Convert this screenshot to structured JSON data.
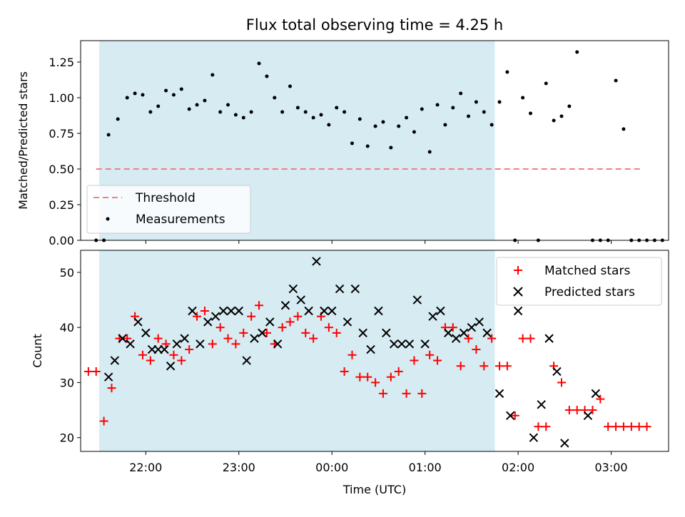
{
  "chart_data": [
    {
      "type": "scatter",
      "title": "Flux total observing time = 4.25 h",
      "xlabel": "",
      "ylabel": "Matched/Predicted stars",
      "ylim": [
        0,
        1.4
      ],
      "yticks": [
        0.0,
        0.25,
        0.5,
        0.75,
        1.0,
        1.25
      ],
      "ytick_labels": [
        "0.00",
        "0.25",
        "0.50",
        "0.75",
        "1.00",
        "1.25"
      ],
      "xlim": [
        "21:18",
        "03:37"
      ],
      "xticks": [
        "22:00",
        "23:00",
        "00:00",
        "01:00",
        "02:00",
        "03:00"
      ],
      "highlight_span": [
        "21:30",
        "01:45"
      ],
      "threshold": {
        "name": "Threshold",
        "value": 0.5,
        "x_range": [
          "21:28",
          "03:20"
        ],
        "color": "#f08080"
      },
      "legend_placement": "lower-left",
      "series": [
        {
          "name": "Measurements",
          "color": "#000000",
          "points": [
            [
              "21:28",
              0.0
            ],
            [
              "21:33",
              0.0
            ],
            [
              "21:36",
              0.74
            ],
            [
              "21:42",
              0.85
            ],
            [
              "21:48",
              1.0
            ],
            [
              "21:53",
              1.03
            ],
            [
              "21:58",
              1.02
            ],
            [
              "22:03",
              0.9
            ],
            [
              "22:08",
              0.94
            ],
            [
              "22:13",
              1.05
            ],
            [
              "22:18",
              1.02
            ],
            [
              "22:23",
              1.06
            ],
            [
              "22:28",
              0.92
            ],
            [
              "22:33",
              0.95
            ],
            [
              "22:38",
              0.98
            ],
            [
              "22:43",
              1.16
            ],
            [
              "22:48",
              0.9
            ],
            [
              "22:53",
              0.95
            ],
            [
              "22:58",
              0.88
            ],
            [
              "23:03",
              0.86
            ],
            [
              "23:08",
              0.9
            ],
            [
              "23:13",
              1.24
            ],
            [
              "23:18",
              1.15
            ],
            [
              "23:23",
              1.0
            ],
            [
              "23:28",
              0.9
            ],
            [
              "23:33",
              1.08
            ],
            [
              "23:38",
              0.93
            ],
            [
              "23:43",
              0.9
            ],
            [
              "23:48",
              0.86
            ],
            [
              "23:53",
              0.88
            ],
            [
              "23:58",
              0.81
            ],
            [
              "00:03",
              0.93
            ],
            [
              "00:08",
              0.9
            ],
            [
              "00:13",
              0.68
            ],
            [
              "00:18",
              0.85
            ],
            [
              "00:23",
              0.66
            ],
            [
              "00:28",
              0.8
            ],
            [
              "00:33",
              0.83
            ],
            [
              "00:38",
              0.65
            ],
            [
              "00:43",
              0.8
            ],
            [
              "00:48",
              0.86
            ],
            [
              "00:53",
              0.76
            ],
            [
              "00:58",
              0.92
            ],
            [
              "01:03",
              0.62
            ],
            [
              "01:08",
              0.95
            ],
            [
              "01:13",
              0.81
            ],
            [
              "01:18",
              0.93
            ],
            [
              "01:23",
              1.03
            ],
            [
              "01:28",
              0.87
            ],
            [
              "01:33",
              0.97
            ],
            [
              "01:38",
              0.9
            ],
            [
              "01:43",
              0.81
            ],
            [
              "01:48",
              0.97
            ],
            [
              "01:53",
              1.18
            ],
            [
              "01:58",
              0.0
            ],
            [
              "02:03",
              1.0
            ],
            [
              "02:08",
              0.89
            ],
            [
              "02:13",
              0.0
            ],
            [
              "02:18",
              1.1
            ],
            [
              "02:23",
              0.84
            ],
            [
              "02:28",
              0.87
            ],
            [
              "02:33",
              0.94
            ],
            [
              "02:38",
              1.32
            ],
            [
              "02:48",
              0.0
            ],
            [
              "02:53",
              0.0
            ],
            [
              "02:58",
              0.0
            ],
            [
              "03:03",
              1.12
            ],
            [
              "03:08",
              0.78
            ],
            [
              "03:13",
              0.0
            ],
            [
              "03:18",
              0.0
            ],
            [
              "03:23",
              0.0
            ],
            [
              "03:28",
              0.0
            ],
            [
              "03:33",
              0.0
            ]
          ]
        }
      ]
    },
    {
      "type": "scatter",
      "title": "",
      "xlabel": "Time (UTC)",
      "ylabel": "Count",
      "ylim": [
        17.5,
        54
      ],
      "yticks": [
        20,
        30,
        40,
        50
      ],
      "ytick_labels": [
        "20",
        "30",
        "40",
        "50"
      ],
      "xlim": [
        "21:18",
        "03:37"
      ],
      "xticks": [
        "22:00",
        "23:00",
        "00:00",
        "01:00",
        "02:00",
        "03:00"
      ],
      "xtick_labels": [
        "22:00",
        "23:00",
        "00:00",
        "01:00",
        "02:00",
        "03:00"
      ],
      "highlight_span": [
        "21:30",
        "01:45"
      ],
      "legend_placement": "upper-right",
      "series": [
        {
          "name": "Matched stars",
          "marker": "plus",
          "color": "#ff0000",
          "points": [
            [
              "21:23",
              32
            ],
            [
              "21:28",
              32
            ],
            [
              "21:33",
              23
            ],
            [
              "21:38",
              29
            ],
            [
              "21:43",
              38
            ],
            [
              "21:48",
              38
            ],
            [
              "21:53",
              42
            ],
            [
              "21:58",
              35
            ],
            [
              "22:03",
              34
            ],
            [
              "22:08",
              38
            ],
            [
              "22:13",
              37
            ],
            [
              "22:18",
              35
            ],
            [
              "22:23",
              34
            ],
            [
              "22:28",
              36
            ],
            [
              "22:33",
              42
            ],
            [
              "22:38",
              43
            ],
            [
              "22:43",
              37
            ],
            [
              "22:48",
              40
            ],
            [
              "22:53",
              38
            ],
            [
              "22:58",
              37
            ],
            [
              "23:03",
              39
            ],
            [
              "23:08",
              42
            ],
            [
              "23:13",
              44
            ],
            [
              "23:18",
              39
            ],
            [
              "23:23",
              37
            ],
            [
              "23:28",
              40
            ],
            [
              "23:33",
              41
            ],
            [
              "23:38",
              42
            ],
            [
              "23:43",
              39
            ],
            [
              "23:48",
              38
            ],
            [
              "23:53",
              42
            ],
            [
              "23:58",
              40
            ],
            [
              "00:03",
              39
            ],
            [
              "00:08",
              32
            ],
            [
              "00:13",
              35
            ],
            [
              "00:18",
              31
            ],
            [
              "00:23",
              31
            ],
            [
              "00:28",
              30
            ],
            [
              "00:33",
              28
            ],
            [
              "00:38",
              31
            ],
            [
              "00:43",
              32
            ],
            [
              "00:48",
              28
            ],
            [
              "00:53",
              34
            ],
            [
              "00:58",
              28
            ],
            [
              "01:03",
              35
            ],
            [
              "01:08",
              34
            ],
            [
              "01:13",
              40
            ],
            [
              "01:18",
              40
            ],
            [
              "01:23",
              33
            ],
            [
              "01:28",
              38
            ],
            [
              "01:33",
              36
            ],
            [
              "01:38",
              33
            ],
            [
              "01:43",
              38
            ],
            [
              "01:48",
              33
            ],
            [
              "01:53",
              33
            ],
            [
              "01:58",
              24
            ],
            [
              "02:03",
              38
            ],
            [
              "02:08",
              38
            ],
            [
              "02:13",
              22
            ],
            [
              "02:18",
              22
            ],
            [
              "02:23",
              33
            ],
            [
              "02:28",
              30
            ],
            [
              "02:33",
              25
            ],
            [
              "02:38",
              25
            ],
            [
              "02:43",
              25
            ],
            [
              "02:48",
              25
            ],
            [
              "02:53",
              27
            ],
            [
              "02:58",
              22
            ],
            [
              "03:03",
              22
            ],
            [
              "03:08",
              22
            ],
            [
              "03:13",
              22
            ],
            [
              "03:18",
              22
            ],
            [
              "03:23",
              22
            ]
          ]
        },
        {
          "name": "Predicted stars",
          "marker": "x",
          "color": "#000000",
          "points": [
            [
              "21:36",
              31
            ],
            [
              "21:40",
              34
            ],
            [
              "21:45",
              38
            ],
            [
              "21:50",
              37
            ],
            [
              "21:55",
              41
            ],
            [
              "22:00",
              39
            ],
            [
              "22:04",
              36
            ],
            [
              "22:08",
              36
            ],
            [
              "22:12",
              36
            ],
            [
              "22:16",
              33
            ],
            [
              "22:20",
              37
            ],
            [
              "22:25",
              38
            ],
            [
              "22:30",
              43
            ],
            [
              "22:35",
              37
            ],
            [
              "22:40",
              41
            ],
            [
              "22:45",
              42
            ],
            [
              "22:50",
              43
            ],
            [
              "22:55",
              43
            ],
            [
              "23:00",
              43
            ],
            [
              "23:05",
              34
            ],
            [
              "23:10",
              38
            ],
            [
              "23:15",
              39
            ],
            [
              "23:20",
              41
            ],
            [
              "23:25",
              37
            ],
            [
              "23:30",
              44
            ],
            [
              "23:35",
              47
            ],
            [
              "23:40",
              45
            ],
            [
              "23:45",
              43
            ],
            [
              "23:50",
              52
            ],
            [
              "23:55",
              43
            ],
            [
              "00:00",
              43
            ],
            [
              "00:05",
              47
            ],
            [
              "00:10",
              41
            ],
            [
              "00:15",
              47
            ],
            [
              "00:20",
              39
            ],
            [
              "00:25",
              36
            ],
            [
              "00:30",
              43
            ],
            [
              "00:35",
              39
            ],
            [
              "00:40",
              37
            ],
            [
              "00:45",
              37
            ],
            [
              "00:50",
              37
            ],
            [
              "00:55",
              45
            ],
            [
              "01:00",
              37
            ],
            [
              "01:05",
              42
            ],
            [
              "01:10",
              43
            ],
            [
              "01:15",
              39
            ],
            [
              "01:20",
              38
            ],
            [
              "01:25",
              39
            ],
            [
              "01:30",
              40
            ],
            [
              "01:35",
              41
            ],
            [
              "01:40",
              39
            ],
            [
              "01:48",
              28
            ],
            [
              "01:55",
              24
            ],
            [
              "02:00",
              43
            ],
            [
              "02:10",
              20
            ],
            [
              "02:15",
              26
            ],
            [
              "02:20",
              38
            ],
            [
              "02:25",
              32
            ],
            [
              "02:30",
              19
            ],
            [
              "02:45",
              24
            ],
            [
              "02:50",
              28
            ]
          ]
        }
      ]
    }
  ]
}
